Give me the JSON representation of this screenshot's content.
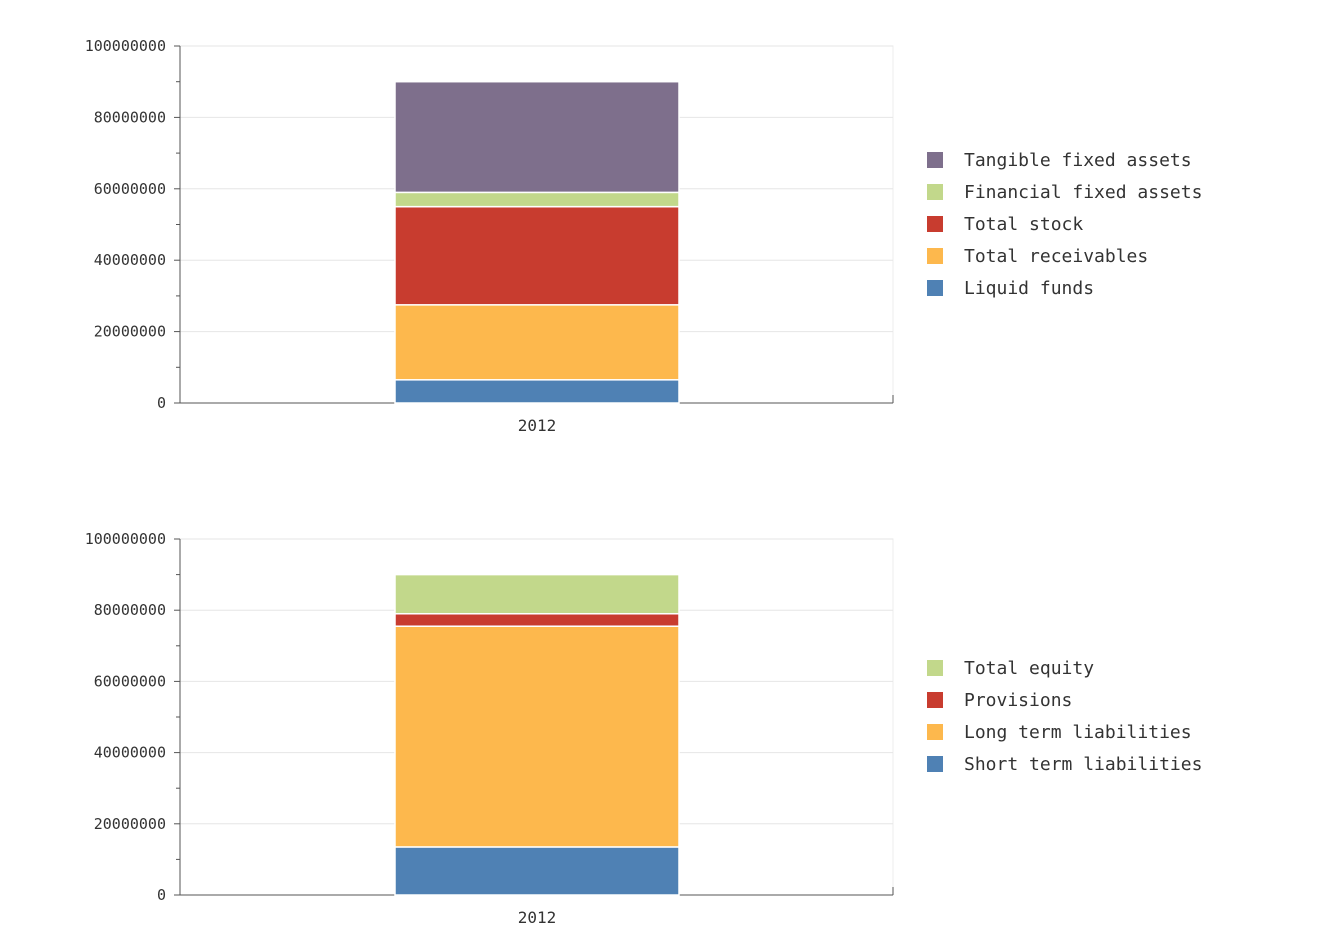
{
  "chart_data": [
    {
      "type": "bar",
      "stacked": true,
      "categories": [
        "2012"
      ],
      "ylim": [
        0,
        100000000
      ],
      "yticks": [
        "0",
        "20000000",
        "40000000",
        "60000000",
        "80000000",
        "100000000"
      ],
      "grid": true,
      "legend_position": "right",
      "series": [
        {
          "name": "Liquid funds",
          "values": [
            6500000
          ],
          "color": "#4f81b4"
        },
        {
          "name": "Total receivables",
          "values": [
            21000000
          ],
          "color": "#fdb84d"
        },
        {
          "name": "Total stock",
          "values": [
            27500000
          ],
          "color": "#c83c2f"
        },
        {
          "name": "Financial fixed assets",
          "values": [
            4000000
          ],
          "color": "#c2d88b"
        },
        {
          "name": "Tangible fixed assets",
          "values": [
            31000000
          ],
          "color": "#7e6f8c"
        }
      ]
    },
    {
      "type": "bar",
      "stacked": true,
      "categories": [
        "2012"
      ],
      "ylim": [
        0,
        100000000
      ],
      "yticks": [
        "0",
        "20000000",
        "40000000",
        "60000000",
        "80000000",
        "100000000"
      ],
      "grid": true,
      "legend_position": "right",
      "series": [
        {
          "name": "Short term liabilities",
          "values": [
            13500000
          ],
          "color": "#4f81b4"
        },
        {
          "name": "Long term liabilities",
          "values": [
            62000000
          ],
          "color": "#fdb84d"
        },
        {
          "name": "Provisions",
          "values": [
            3500000
          ],
          "color": "#c83c2f"
        },
        {
          "name": "Total equity",
          "values": [
            11000000
          ],
          "color": "#c2d88b"
        }
      ]
    }
  ]
}
